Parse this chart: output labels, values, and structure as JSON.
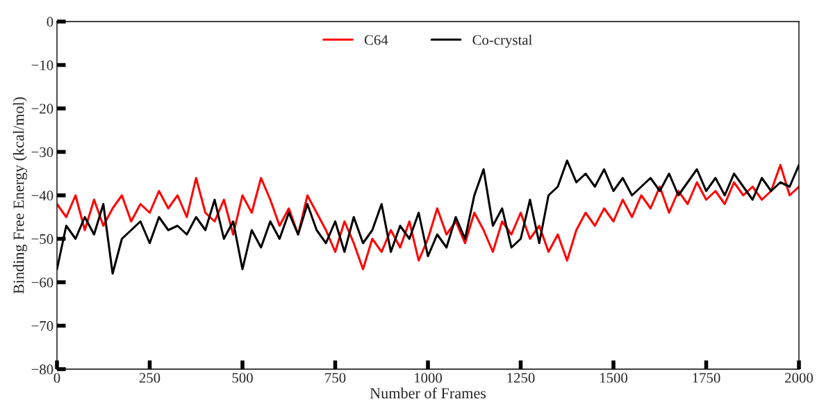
{
  "chart_data": {
    "type": "line",
    "xlabel": "Number of Frames",
    "ylabel": "Binding Free Energy (kcal/mol)",
    "x": [
      0,
      25,
      50,
      75,
      100,
      125,
      150,
      175,
      200,
      225,
      250,
      275,
      300,
      325,
      350,
      375,
      400,
      425,
      450,
      475,
      500,
      525,
      550,
      575,
      600,
      625,
      650,
      675,
      700,
      725,
      750,
      775,
      800,
      825,
      850,
      875,
      900,
      925,
      950,
      975,
      1000,
      1025,
      1050,
      1075,
      1100,
      1125,
      1150,
      1175,
      1200,
      1225,
      1250,
      1275,
      1300,
      1325,
      1350,
      1375,
      1400,
      1425,
      1450,
      1475,
      1500,
      1525,
      1550,
      1575,
      1600,
      1625,
      1650,
      1675,
      1700,
      1725,
      1750,
      1775,
      1800,
      1825,
      1850,
      1875,
      1900,
      1925,
      1950,
      1975,
      2000
    ],
    "series": [
      {
        "name": "C64",
        "color": "#ff0000",
        "values": [
          -42,
          -45,
          -40,
          -48,
          -41,
          -47,
          -43,
          -40,
          -46,
          -42,
          -44,
          -39,
          -43,
          -40,
          -45,
          -36,
          -44,
          -46,
          -41,
          -49,
          -40,
          -44,
          -36,
          -41,
          -47,
          -43,
          -49,
          -40,
          -44,
          -48,
          -53,
          -46,
          -51,
          -57,
          -50,
          -53,
          -48,
          -52,
          -46,
          -55,
          -50,
          -43,
          -49,
          -46,
          -51,
          -44,
          -48,
          -53,
          -46,
          -49,
          -44,
          -50,
          -47,
          -53,
          -49,
          -55,
          -48,
          -44,
          -47,
          -43,
          -46,
          -41,
          -45,
          -40,
          -43,
          -38,
          -44,
          -39,
          -42,
          -37,
          -41,
          -39,
          -42,
          -37,
          -40,
          -38,
          -41,
          -39,
          -33,
          -40,
          -38
        ]
      },
      {
        "name": "Co-crystal",
        "color": "#000000",
        "values": [
          -57,
          -47,
          -50,
          -45,
          -49,
          -42,
          -58,
          -50,
          -48,
          -46,
          -51,
          -45,
          -48,
          -47,
          -49,
          -45,
          -48,
          -41,
          -50,
          -46,
          -57,
          -48,
          -52,
          -46,
          -50,
          -44,
          -49,
          -42,
          -48,
          -51,
          -46,
          -53,
          -45,
          -51,
          -48,
          -42,
          -53,
          -47,
          -50,
          -44,
          -54,
          -49,
          -52,
          -45,
          -50,
          -40,
          -34,
          -47,
          -43,
          -52,
          -50,
          -41,
          -51,
          -40,
          -38,
          -32,
          -37,
          -35,
          -38,
          -34,
          -39,
          -36,
          -40,
          -38,
          -36,
          -39,
          -35,
          -40,
          -37,
          -34,
          -39,
          -36,
          -40,
          -35,
          -38,
          -41,
          -36,
          -39,
          -37,
          -38,
          -33
        ]
      }
    ],
    "xlim": [
      0,
      2000
    ],
    "xticks": [
      0,
      250,
      500,
      750,
      1000,
      1250,
      1500,
      1750,
      2000
    ],
    "ylim": [
      -80,
      0
    ],
    "yticks": [
      {
        "value": -80,
        "label": "−80"
      },
      {
        "value": -70,
        "label": "−70"
      },
      {
        "value": -60,
        "label": "−60"
      },
      {
        "value": -50,
        "label": "−50"
      },
      {
        "value": -40,
        "label": "−40"
      },
      {
        "value": -30,
        "label": "−30"
      },
      {
        "value": -20,
        "label": "−20"
      },
      {
        "value": -10,
        "label": "−10"
      },
      0
    ],
    "legend": "top",
    "grid": false,
    "marker": "none",
    "line_style": "solid"
  }
}
